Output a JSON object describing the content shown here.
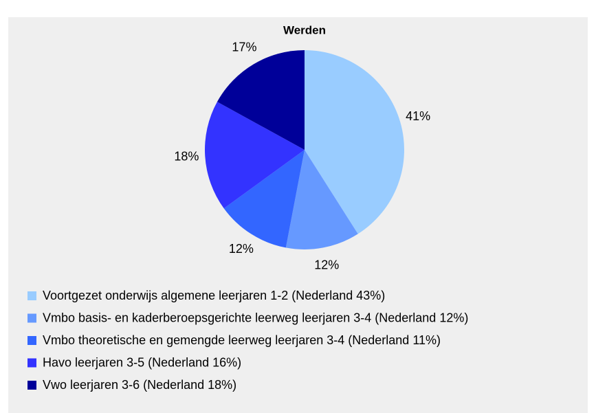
{
  "chart_data": {
    "type": "pie",
    "title": "Werden",
    "categories": [
      "Voortgezet onderwijs algemene leerjaren 1-2 (Nederland 43%)",
      "Vmbo basis- en kaderberoepsgerichte leerweg leerjaren 3-4 (Nederland 12%)",
      "Vmbo theoretische en gemengde leerweg leerjaren 3-4 (Nederland 11%)",
      "Havo leerjaren 3-5 (Nederland 16%)",
      "Vwo leerjaren 3-6 (Nederland 18%)"
    ],
    "values": [
      41,
      12,
      12,
      18,
      17
    ],
    "value_labels": [
      "41%",
      "12%",
      "12%",
      "18%",
      "17%"
    ],
    "colors": [
      "#99ccff",
      "#6699ff",
      "#3366ff",
      "#3333ff",
      "#000099"
    ]
  }
}
